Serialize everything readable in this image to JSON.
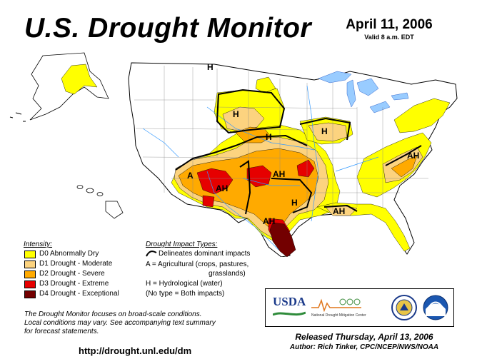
{
  "title": "U.S. Drought Monitor",
  "date": "April 11, 2006",
  "valid": "Valid 8 a.m. EDT",
  "colors": {
    "D0": "#ffff00",
    "D1": "#fcd37f",
    "D2": "#ffaa00",
    "D3": "#e60000",
    "D4": "#730000",
    "water": "#99ccff"
  },
  "legend": {
    "title": "Intensity:",
    "items": [
      {
        "label": "D0 Abnormally Dry",
        "color": "#ffff00"
      },
      {
        "label": "D1 Drought - Moderate",
        "color": "#fcd37f"
      },
      {
        "label": "D2 Drought - Severe",
        "color": "#ffaa00"
      },
      {
        "label": "D3 Drought - Extreme",
        "color": "#e60000"
      },
      {
        "label": "D4 Drought - Exceptional",
        "color": "#730000"
      }
    ]
  },
  "impacts": {
    "title": "Drought Impact Types:",
    "line": "Delineates dominant impacts",
    "a1": "A = Agricultural (crops, pastures,",
    "a2": "grasslands)",
    "h": "H = Hydrological (water)",
    "none": "(No type = Both impacts)"
  },
  "map_labels": {
    "h_mt": "H",
    "h_nd": "H",
    "h_ne": "H",
    "h_wi": "H",
    "a_az": "A",
    "ah_nm": "AH",
    "ah_ok": "AH",
    "h_ar": "H",
    "ah_tx": "AH",
    "ah_ga": "AH",
    "ah_va": "AH"
  },
  "note": {
    "line1": "The Drought Monitor focuses on broad-scale conditions.",
    "line2": "Local conditions may vary.  See accompanying text summary",
    "line3": "for forecast statements."
  },
  "url": "http://drought.unl.edu/dm",
  "released": "Released Thursday, April 13, 2006",
  "author": "Author:  Rich Tinker, CPC/NCEP/NWS/NOAA",
  "logos": {
    "usda": "USDA",
    "ndmc": "National Drought Mitigation Center"
  }
}
